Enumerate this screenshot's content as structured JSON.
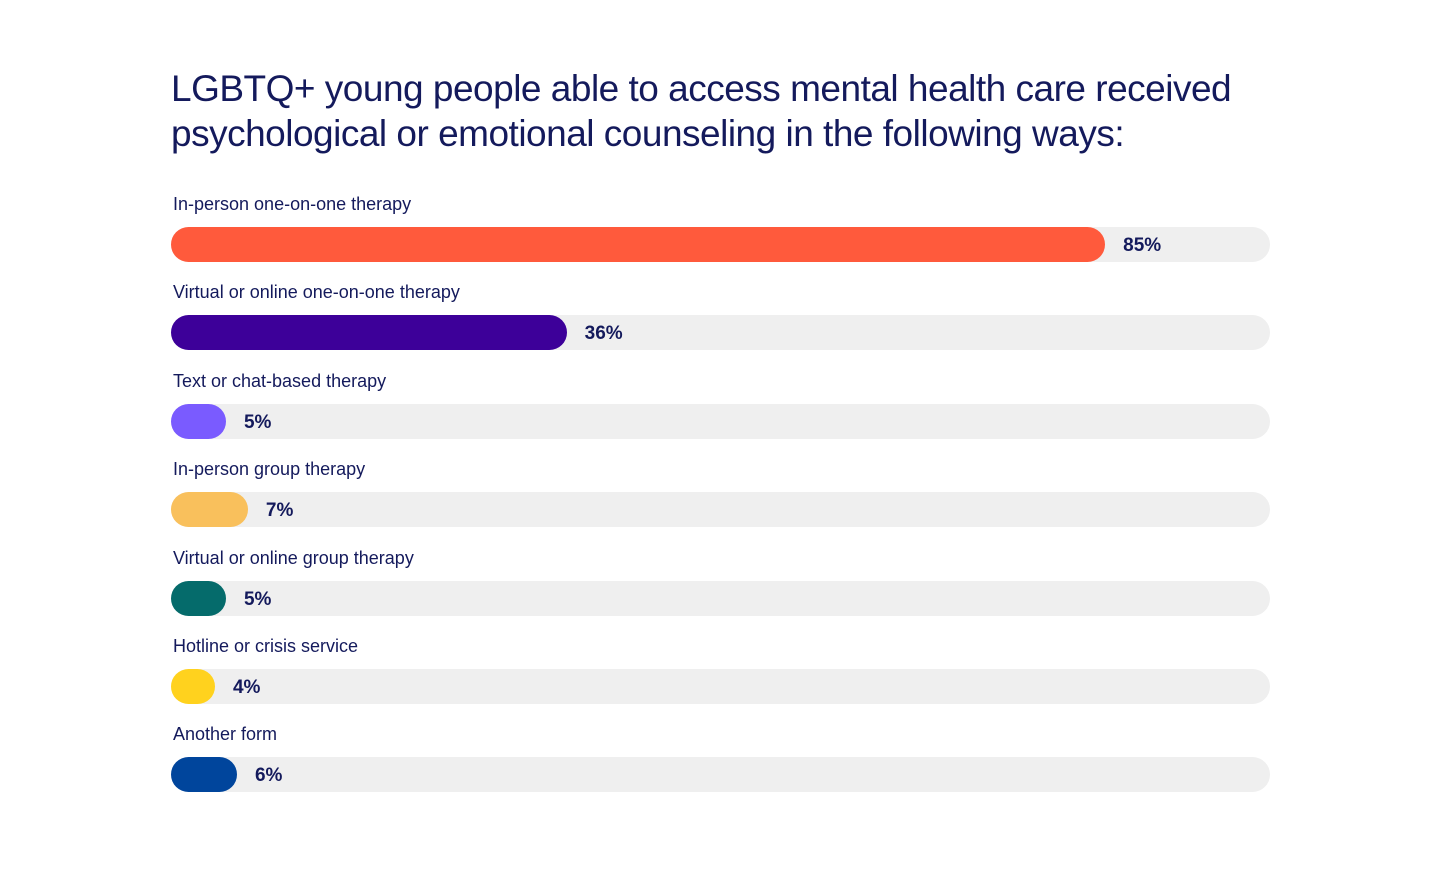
{
  "chart_data": {
    "type": "bar",
    "orientation": "horizontal",
    "title": "LGBTQ+ young people able to access mental health care received psychological or emotional counseling in the following ways:",
    "xlim": [
      0,
      100
    ],
    "grid": false,
    "categories": [
      "In-person one-on-one therapy",
      "Virtual or online one-on-one therapy",
      "Text or chat-based therapy",
      "In-person group therapy",
      "Virtual or online group therapy",
      "Hotline or crisis service",
      "Another form"
    ],
    "values": [
      85,
      36,
      5,
      7,
      5,
      4,
      6
    ],
    "value_labels": [
      "85%",
      "36%",
      "5%",
      "7%",
      "5%",
      "4%",
      "6%"
    ],
    "colors": [
      "#ff5a3c",
      "#3d0099",
      "#7a5bff",
      "#f9c05c",
      "#056b6b",
      "#ffd21e",
      "#00459c"
    ],
    "track_color": "#efefef",
    "text_color": "#141a5c"
  }
}
